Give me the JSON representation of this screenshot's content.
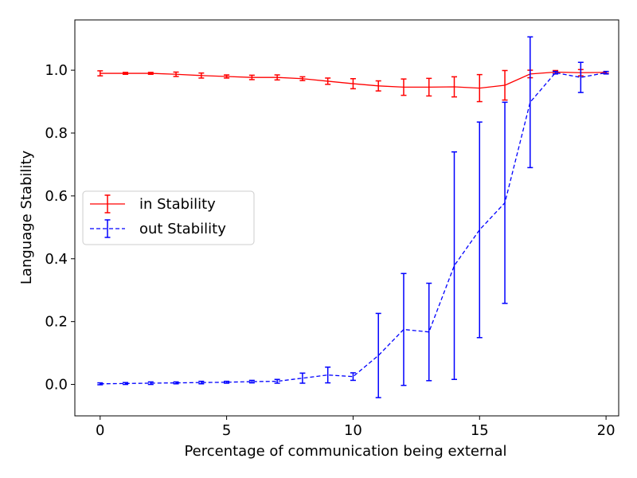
{
  "chart_data": {
    "type": "line",
    "title": "",
    "xlabel": "Percentage of communication being external",
    "ylabel": "Language Stability",
    "xlim": [
      -1,
      20.5
    ],
    "ylim": [
      -0.1,
      1.16
    ],
    "xticks": [
      0,
      5,
      10,
      15,
      20
    ],
    "yticks": [
      0.0,
      0.2,
      0.4,
      0.6,
      0.8,
      1.0
    ],
    "xtick_labels": [
      "0",
      "5",
      "10",
      "15",
      "20"
    ],
    "ytick_labels": [
      "0.0",
      "0.2",
      "0.4",
      "0.6",
      "0.8",
      "1.0"
    ],
    "grid": false,
    "legend_position": "center-left",
    "x": [
      0,
      1,
      2,
      3,
      4,
      5,
      6,
      7,
      8,
      9,
      10,
      11,
      12,
      13,
      14,
      15,
      16,
      17,
      18,
      19,
      20
    ],
    "series": [
      {
        "name": "in Stability",
        "color": "#ff0000",
        "linestyle": "solid",
        "values": [
          0.99,
          0.99,
          0.99,
          0.987,
          0.983,
          0.98,
          0.977,
          0.977,
          0.973,
          0.965,
          0.957,
          0.95,
          0.946,
          0.946,
          0.947,
          0.943,
          0.952,
          0.988,
          0.994,
          0.992,
          0.993
        ],
        "errors": [
          0.008,
          0.003,
          0.003,
          0.007,
          0.008,
          0.005,
          0.007,
          0.008,
          0.006,
          0.01,
          0.016,
          0.016,
          0.026,
          0.028,
          0.032,
          0.043,
          0.047,
          0.012,
          0.005,
          0.01,
          0.003
        ]
      },
      {
        "name": "out Stability",
        "color": "#0000ff",
        "linestyle": "dashed",
        "values": [
          0.002,
          0.003,
          0.004,
          0.005,
          0.006,
          0.007,
          0.009,
          0.01,
          0.02,
          0.03,
          0.025,
          0.092,
          0.175,
          0.167,
          0.378,
          0.492,
          0.578,
          0.898,
          0.992,
          0.977,
          0.992
        ],
        "errors": [
          0.003,
          0.003,
          0.004,
          0.003,
          0.004,
          0.003,
          0.004,
          0.006,
          0.016,
          0.025,
          0.012,
          0.134,
          0.178,
          0.155,
          0.362,
          0.343,
          0.32,
          0.208,
          0.004,
          0.048,
          0.004
        ]
      }
    ]
  }
}
